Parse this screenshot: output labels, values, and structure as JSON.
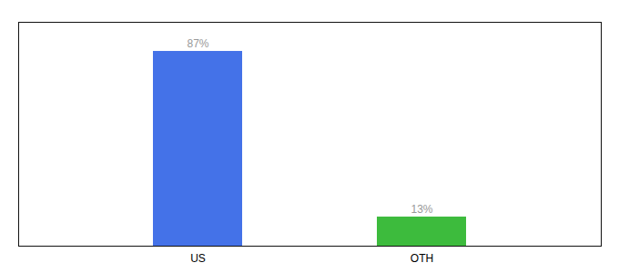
{
  "chart_data": {
    "type": "bar",
    "categories": [
      "US",
      "OTH"
    ],
    "values": [
      87,
      13
    ],
    "value_labels": [
      "87%",
      "13%"
    ],
    "colors": [
      "#4472e8",
      "#3dbb3d"
    ],
    "ylim": [
      0,
      100
    ],
    "data_labels": true,
    "tick_labels": "x"
  }
}
